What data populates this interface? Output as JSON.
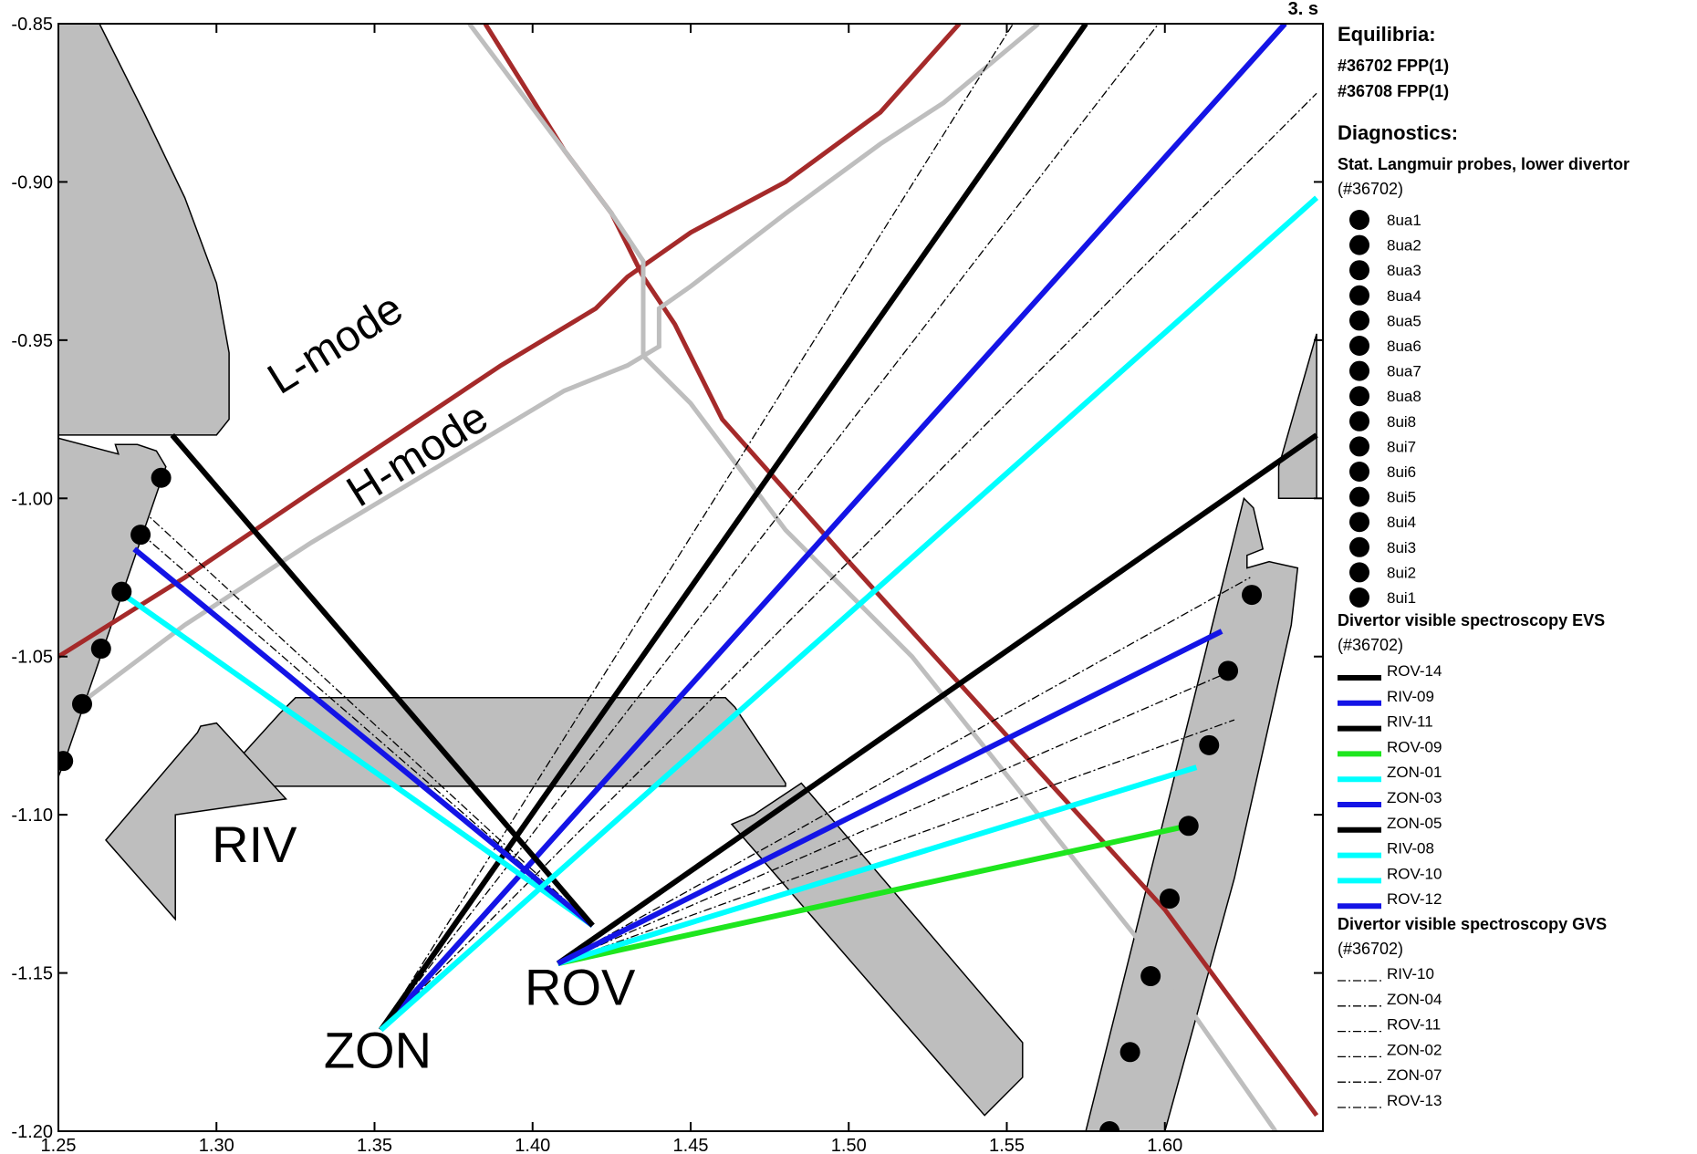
{
  "time_label": "3. s",
  "colors": {
    "lmode": "#a52a2a",
    "hmode": "#bebebe",
    "wall_fill": "#bebebe",
    "black": "#000000",
    "blue": "#1414e6",
    "cyan": "#00ffff",
    "green": "#1ee61e"
  },
  "chart_data": {
    "type": "diagram",
    "xlim": [
      1.25,
      1.65
    ],
    "ylim": [
      -1.2,
      -0.85
    ],
    "x_ticks": [
      {
        "v": 1.25,
        "label": "1.25"
      },
      {
        "v": 1.3,
        "label": "1.30"
      },
      {
        "v": 1.35,
        "label": "1.35"
      },
      {
        "v": 1.4,
        "label": "1.40"
      },
      {
        "v": 1.45,
        "label": "1.45"
      },
      {
        "v": 1.5,
        "label": "1.50"
      },
      {
        "v": 1.55,
        "label": "1.55"
      },
      {
        "v": 1.6,
        "label": "1.60"
      }
    ],
    "y_ticks": [
      {
        "v": -0.85,
        "label": "-0.85"
      },
      {
        "v": -0.9,
        "label": "-0.90"
      },
      {
        "v": -0.95,
        "label": "-0.95"
      },
      {
        "v": -1.0,
        "label": "-1.00"
      },
      {
        "v": -1.05,
        "label": "-1.05"
      },
      {
        "v": -1.1,
        "label": "-1.10"
      },
      {
        "v": -1.15,
        "label": "-1.15"
      },
      {
        "v": -1.2,
        "label": "-1.20"
      }
    ],
    "labels": [
      {
        "text": "RIV",
        "x": 1.312,
        "y": -1.115
      },
      {
        "text": "ROV",
        "x": 1.415,
        "y": -1.16
      },
      {
        "text": "ZON",
        "x": 1.351,
        "y": -1.18
      }
    ],
    "mode_labels": [
      {
        "text": "L-mode",
        "x": 1.34,
        "y": -0.955
      },
      {
        "text": "H-mode",
        "x": 1.366,
        "y": -0.99
      }
    ],
    "equilibria": [
      {
        "name": "#36702 FPP(1)",
        "mode": "L-mode",
        "color": "#a52a2a",
        "strike_line": [
          [
            1.25,
            -1.05
          ],
          [
            1.29,
            -1.025
          ],
          [
            1.33,
            -0.998
          ],
          [
            1.36,
            -0.978
          ],
          [
            1.39,
            -0.958
          ],
          [
            1.42,
            -0.94
          ],
          [
            1.43,
            -0.93
          ],
          [
            1.45,
            -0.916
          ],
          [
            1.48,
            -0.9
          ],
          [
            1.51,
            -0.878
          ],
          [
            1.535,
            -0.85
          ]
        ],
        "leg_line": [
          [
            1.385,
            -0.85
          ],
          [
            1.41,
            -0.89
          ],
          [
            1.425,
            -0.91
          ],
          [
            1.435,
            -0.93
          ],
          [
            1.445,
            -0.945
          ],
          [
            1.46,
            -0.975
          ],
          [
            1.5,
            -1.02
          ],
          [
            1.55,
            -1.075
          ],
          [
            1.6,
            -1.13
          ],
          [
            1.648,
            -1.195
          ]
        ]
      },
      {
        "name": "#36708 FPP(1)",
        "mode": "H-mode",
        "color": "#bebebe",
        "strike_line": [
          [
            1.25,
            -1.07
          ],
          [
            1.29,
            -1.04
          ],
          [
            1.33,
            -1.014
          ],
          [
            1.37,
            -0.99
          ],
          [
            1.41,
            -0.966
          ],
          [
            1.43,
            -0.958
          ],
          [
            1.44,
            -0.952
          ],
          [
            1.44,
            -0.94
          ],
          [
            1.45,
            -0.933
          ],
          [
            1.48,
            -0.91
          ],
          [
            1.51,
            -0.888
          ],
          [
            1.53,
            -0.875
          ],
          [
            1.56,
            -0.85
          ]
        ],
        "leg_line": [
          [
            1.38,
            -0.85
          ],
          [
            1.41,
            -0.89
          ],
          [
            1.425,
            -0.91
          ],
          [
            1.435,
            -0.925
          ],
          [
            1.435,
            -0.955
          ],
          [
            1.45,
            -0.97
          ],
          [
            1.48,
            -1.01
          ],
          [
            1.52,
            -1.05
          ],
          [
            1.56,
            -1.1
          ],
          [
            1.6,
            -1.15
          ],
          [
            1.635,
            -1.2
          ]
        ]
      }
    ],
    "probes": [
      {
        "name": "8ua1",
        "x": 1.6275,
        "y": -1.0305
      },
      {
        "name": "8ua2",
        "x": 1.62,
        "y": -1.0545
      },
      {
        "name": "8ua3",
        "x": 1.614,
        "y": -1.078
      },
      {
        "name": "8ua4",
        "x": 1.6075,
        "y": -1.1035
      },
      {
        "name": "8ua5",
        "x": 1.6015,
        "y": -1.1265
      },
      {
        "name": "8ua6",
        "x": 1.5955,
        "y": -1.151
      },
      {
        "name": "8ua7",
        "x": 1.589,
        "y": -1.175
      },
      {
        "name": "8ua8",
        "x": 1.5825,
        "y": -1.2
      },
      {
        "name": "8ui8",
        "x": 1.2515,
        "y": -1.083
      },
      {
        "name": "8ui7",
        "x": 1.2575,
        "y": -1.065
      },
      {
        "name": "8ui6",
        "x": 1.2635,
        "y": -1.0475
      },
      {
        "name": "8ui5",
        "x": 1.27,
        "y": -1.0295
      },
      {
        "name": "8ui4",
        "x": 1.276,
        "y": -1.0115
      },
      {
        "name": "8ui3",
        "x": 1.2825,
        "y": -0.9935
      },
      {
        "name": "8ui2",
        "x": null,
        "y": null
      },
      {
        "name": "8ui1",
        "x": null,
        "y": null
      }
    ],
    "evs_lines": [
      {
        "name": "ROV-14",
        "color": "#000000",
        "from": [
          1.408,
          -1.147
        ],
        "to": [
          1.648,
          -0.98
        ]
      },
      {
        "name": "RIV-09",
        "color": "#1414e6",
        "from": [
          1.352,
          -1.168
        ],
        "to": [
          1.638,
          -0.85
        ]
      },
      {
        "name": "RIV-11",
        "color": "#000000",
        "from": [
          1.352,
          -1.168
        ],
        "to": [
          1.575,
          -0.85
        ]
      },
      {
        "name": "ROV-09",
        "color": "#1ee61e",
        "from": [
          1.408,
          -1.147
        ],
        "to": [
          1.605,
          -1.104
        ]
      },
      {
        "name": "ZON-01",
        "color": "#00ffff",
        "from": [
          1.419,
          -1.135
        ],
        "to": [
          1.27,
          -1.03
        ]
      },
      {
        "name": "ZON-03",
        "color": "#1414e6",
        "from": [
          1.419,
          -1.135
        ],
        "to": [
          1.274,
          -1.016
        ]
      },
      {
        "name": "ZON-05",
        "color": "#000000",
        "from": [
          1.419,
          -1.135
        ],
        "to": [
          1.286,
          -0.98
        ]
      },
      {
        "name": "RIV-08",
        "color": "#00ffff",
        "from": [
          1.352,
          -1.168
        ],
        "to": [
          1.648,
          -0.905
        ]
      },
      {
        "name": "ROV-10",
        "color": "#00ffff",
        "from": [
          1.408,
          -1.147
        ],
        "to": [
          1.61,
          -1.085
        ]
      },
      {
        "name": "ROV-12",
        "color": "#1414e6",
        "from": [
          1.408,
          -1.147
        ],
        "to": [
          1.618,
          -1.042
        ]
      }
    ],
    "gvs_lines": [
      {
        "name": "RIV-10",
        "from": [
          1.352,
          -1.168
        ],
        "to": [
          1.552,
          -0.85
        ]
      },
      {
        "name": "ZON-04",
        "from": [
          1.419,
          -1.135
        ],
        "to": [
          1.279,
          -1.006
        ]
      },
      {
        "name": "ROV-11",
        "from": [
          1.408,
          -1.147
        ],
        "to": [
          1.62,
          -1.055
        ]
      },
      {
        "name": "ZON-02",
        "from": [
          1.419,
          -1.135
        ],
        "to": [
          1.276,
          -1.011
        ]
      },
      {
        "name": "ZON-07",
        "from": [
          1.408,
          -1.147
        ],
        "to": [
          1.622,
          -1.07
        ]
      },
      {
        "name": "ROV-13",
        "from": [
          1.408,
          -1.147
        ],
        "to": [
          1.627,
          -1.025
        ]
      }
    ],
    "extra_gvs_lines": [
      {
        "from": [
          1.352,
          -1.168
        ],
        "to": [
          1.598,
          -0.85
        ]
      },
      {
        "from": [
          1.352,
          -1.168
        ],
        "to": [
          1.648,
          -0.872
        ]
      }
    ],
    "walls": [
      {
        "name": "inner-upper-tile",
        "points": [
          [
            1.25,
            -0.85
          ],
          [
            1.263,
            -0.85
          ],
          [
            1.277,
            -0.878
          ],
          [
            1.29,
            -0.905
          ],
          [
            1.3,
            -0.932
          ],
          [
            1.304,
            -0.954
          ],
          [
            1.304,
            -0.975
          ],
          [
            1.3,
            -0.98
          ],
          [
            1.25,
            -0.98
          ]
        ]
      },
      {
        "name": "inner-lower-tile",
        "points": [
          [
            1.25,
            -0.981
          ],
          [
            1.269,
            -0.986
          ],
          [
            1.268,
            -0.983
          ],
          [
            1.275,
            -0.983
          ],
          [
            1.281,
            -0.985
          ],
          [
            1.284,
            -0.99
          ],
          [
            1.252,
            -1.083
          ],
          [
            1.25,
            -1.088
          ]
        ]
      },
      {
        "name": "dome-main",
        "points": [
          [
            1.32,
            -1.068
          ],
          [
            1.325,
            -1.063
          ],
          [
            1.461,
            -1.063
          ],
          [
            1.464,
            -1.066
          ],
          [
            1.48,
            -1.09
          ],
          [
            1.48,
            -1.091
          ],
          [
            1.3,
            -1.091
          ],
          [
            1.3,
            -1.09
          ],
          [
            1.32,
            -1.068
          ]
        ]
      },
      {
        "name": "dome-left-baffle",
        "points": [
          [
            1.295,
            -1.072
          ],
          [
            1.3,
            -1.071
          ],
          [
            1.322,
            -1.095
          ],
          [
            1.287,
            -1.1
          ],
          [
            1.287,
            -1.133
          ],
          [
            1.265,
            -1.108
          ],
          [
            1.294,
            -1.074
          ]
        ]
      },
      {
        "name": "roof-baffle",
        "points": [
          [
            1.47,
            -1.1
          ],
          [
            1.485,
            -1.09
          ],
          [
            1.555,
            -1.172
          ],
          [
            1.555,
            -1.183
          ],
          [
            1.543,
            -1.195
          ],
          [
            1.463,
            -1.103
          ]
        ]
      },
      {
        "name": "outer-target",
        "points": [
          [
            1.575,
            -1.2
          ],
          [
            1.6,
            -1.2
          ],
          [
            1.622,
            -1.12
          ],
          [
            1.64,
            -1.04
          ],
          [
            1.642,
            -1.022
          ],
          [
            1.633,
            -1.02
          ],
          [
            1.626,
            -1.022
          ],
          [
            1.626,
            -1.018
          ],
          [
            1.631,
            -1.016
          ],
          [
            1.628,
            -1.003
          ],
          [
            1.625,
            -1.0
          ],
          [
            1.6,
            -1.1
          ]
        ]
      },
      {
        "name": "outer-upper-tile",
        "points": [
          [
            1.648,
            -0.948
          ],
          [
            1.648,
            -1.0
          ],
          [
            1.636,
            -1.0
          ],
          [
            1.636,
            -0.99
          ],
          [
            1.648,
            -0.948
          ]
        ]
      }
    ]
  },
  "legend": {
    "equilibria_title": "Equilibria:",
    "equilibria": [
      {
        "label": "#36702 FPP(1)",
        "color": "#a52a2a"
      },
      {
        "label": "#36708 FPP(1)",
        "color": "#bebebe"
      }
    ],
    "diagnostics_title": "Diagnostics:",
    "langmuir_title": "Stat. Langmuir probes, lower divertor",
    "langmuir_shot": "(#36702)",
    "evs_title": "Divertor visible spectroscopy EVS",
    "evs_shot": "(#36702)",
    "gvs_title": "Divertor visible spectroscopy GVS",
    "gvs_shot": "(#36702)"
  }
}
